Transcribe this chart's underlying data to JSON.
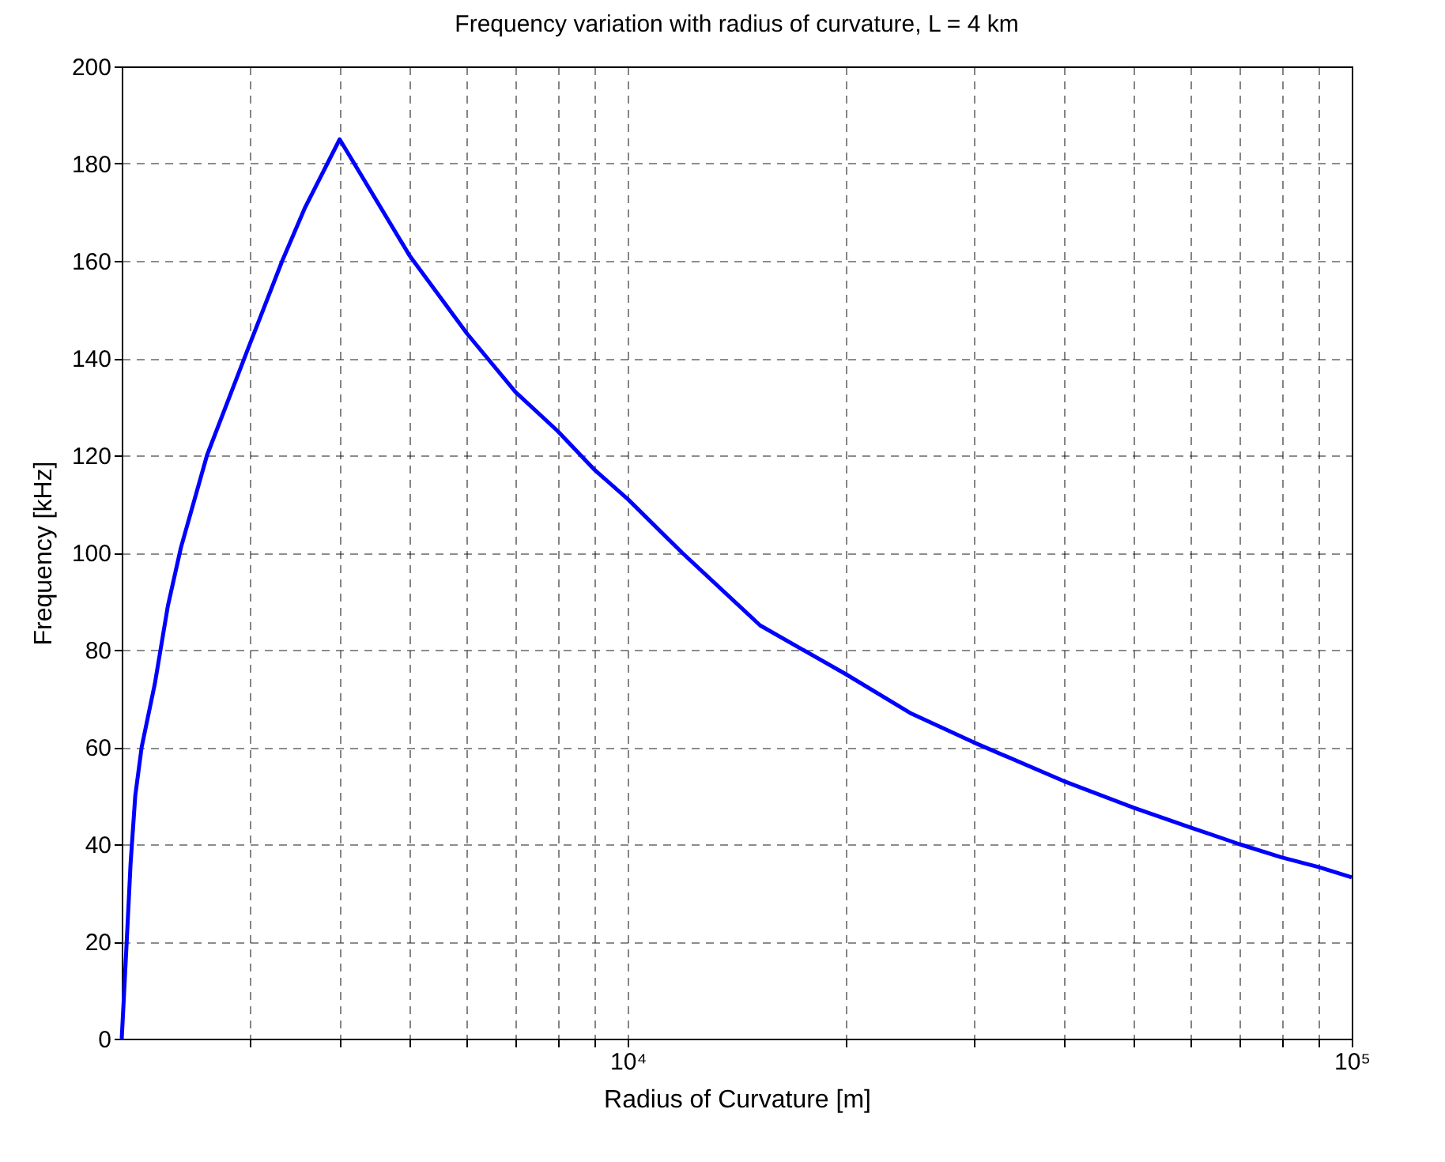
{
  "chart_data": {
    "type": "line",
    "title": "Frequency variation with radius of curvature, L = 4 km",
    "xlabel": "Radius of Curvature [m]",
    "ylabel": "Frequency [kHz]",
    "log": "x",
    "grid": true,
    "marker": "none",
    "line_style": "solid",
    "xlim": [
      2000,
      100000
    ],
    "ylim": [
      0,
      200
    ],
    "xticks": [
      {
        "value": 3000,
        "label": null
      },
      {
        "value": 4000,
        "label": null
      },
      {
        "value": 5000,
        "label": null
      },
      {
        "value": 6000,
        "label": null
      },
      {
        "value": 7000,
        "label": null
      },
      {
        "value": 8000,
        "label": null
      },
      {
        "value": 9000,
        "label": null
      },
      {
        "value": 10000,
        "label": "10⁴"
      },
      {
        "value": 20000,
        "label": null
      },
      {
        "value": 30000,
        "label": null
      },
      {
        "value": 40000,
        "label": null
      },
      {
        "value": 50000,
        "label": null
      },
      {
        "value": 60000,
        "label": null
      },
      {
        "value": 70000,
        "label": null
      },
      {
        "value": 80000,
        "label": null
      },
      {
        "value": 90000,
        "label": null
      },
      {
        "value": 100000,
        "label": "10⁵"
      }
    ],
    "yticks": [
      0,
      20,
      40,
      60,
      80,
      100,
      120,
      140,
      160,
      180,
      200
    ],
    "x": [
      2000,
      2032,
      2057,
      2088,
      2131,
      2222,
      2316,
      2414,
      2623,
      2972,
      3332,
      3584,
      4000,
      5000,
      6000,
      7000,
      8000,
      9000,
      10000,
      11880,
      15240,
      20000,
      24550,
      30000,
      40000,
      50000,
      60000,
      70000,
      80000,
      90000,
      100000
    ],
    "series": [
      {
        "color": "#0000ff",
        "values": [
          0,
          20,
          36,
          50,
          60,
          73,
          89,
          101,
          120,
          141,
          160,
          171,
          185,
          161,
          145,
          133,
          125,
          117,
          111,
          100,
          85,
          75,
          67,
          61,
          53,
          47.5,
          43.4,
          40,
          37.3,
          35.3,
          33.2
        ]
      }
    ]
  }
}
